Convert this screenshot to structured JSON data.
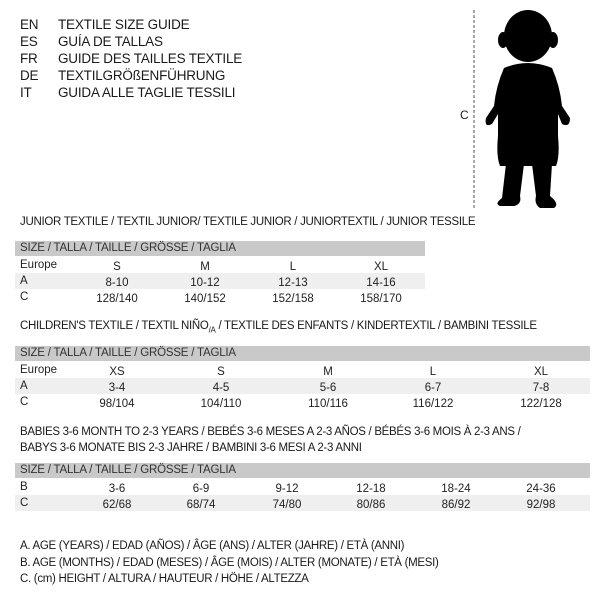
{
  "languages": [
    {
      "code": "EN",
      "title": "TEXTILE SIZE GUIDE"
    },
    {
      "code": "ES",
      "title": "GUÍA DE TALLAS"
    },
    {
      "code": "FR",
      "title": "GUIDE DES TAILLES TEXTILE"
    },
    {
      "code": "DE",
      "title": "TEXTILGRÖßENFÜHRUNG"
    },
    {
      "code": "IT",
      "title": "GUIDA ALLE TAGLIE TESSILI"
    }
  ],
  "figure": {
    "measure_label": "C",
    "icon": "child-silhouette-icon"
  },
  "size_header": "SIZE / TALLA / TAILLE / GRÖSSE / TAGLIA",
  "junior": {
    "title": "JUNIOR TEXTILE / TEXTIL JUNIOR/ TEXTILE JUNIOR / JUNIORTEXTIL / JUNIOR TESSILE",
    "rows": [
      {
        "label": "Europe",
        "values": [
          "S",
          "M",
          "L",
          "XL"
        ]
      },
      {
        "label": "A",
        "values": [
          "8-10",
          "10-12",
          "12-13",
          "14-16"
        ]
      },
      {
        "label": "C",
        "values": [
          "128/140",
          "140/152",
          "152/158",
          "158/170"
        ]
      }
    ]
  },
  "children": {
    "title": "CHILDREN'S TEXTILE / TEXTIL NIÑO/A / TEXTILE DES ENFANTS / KINDERTEXTIL / BAMBINI TESSILE",
    "rows": [
      {
        "label": "Europe",
        "values": [
          "XS",
          "S",
          "M",
          "L",
          "XL"
        ]
      },
      {
        "label": "A",
        "values": [
          "3-4",
          "4-5",
          "5-6",
          "6-7",
          "7-8"
        ]
      },
      {
        "label": "C",
        "values": [
          "98/104",
          "104/110",
          "110/116",
          "116/122",
          "122/128"
        ]
      }
    ]
  },
  "babies": {
    "title_line1": "BABIES 3-6 MONTH TO 2-3 YEARS / BEBÉS 3-6 MESES A 2-3 AÑOS / BÉBÉS 3-6 MOIS À 2-3 ANS /",
    "title_line2": "BABYS 3-6 MONATE BIS 2-3 JAHRE / BAMBINI 3-6 MESI A 2-3 ANNI",
    "rows": [
      {
        "label": "B",
        "values": [
          "3-6",
          "6-9",
          "9-12",
          "12-18",
          "18-24",
          "24-36"
        ]
      },
      {
        "label": "C",
        "values": [
          "62/68",
          "68/74",
          "74/80",
          "80/86",
          "86/92",
          "92/98"
        ]
      }
    ]
  },
  "legend": [
    "A. AGE (YEARS) / EDAD (AÑOS) / ÂGE (ANS) / ALTER (JAHRE) / ETÀ (ANNI)",
    "B. AGE (MONTHS) / EDAD (MESES) / ÂGE (MOIS) / ALTER (MONATE) / ETÀ (MESI)",
    "C. (cm) HEIGHT / ALTURA / HAUTEUR / HÖHE / ALTEZZA"
  ]
}
